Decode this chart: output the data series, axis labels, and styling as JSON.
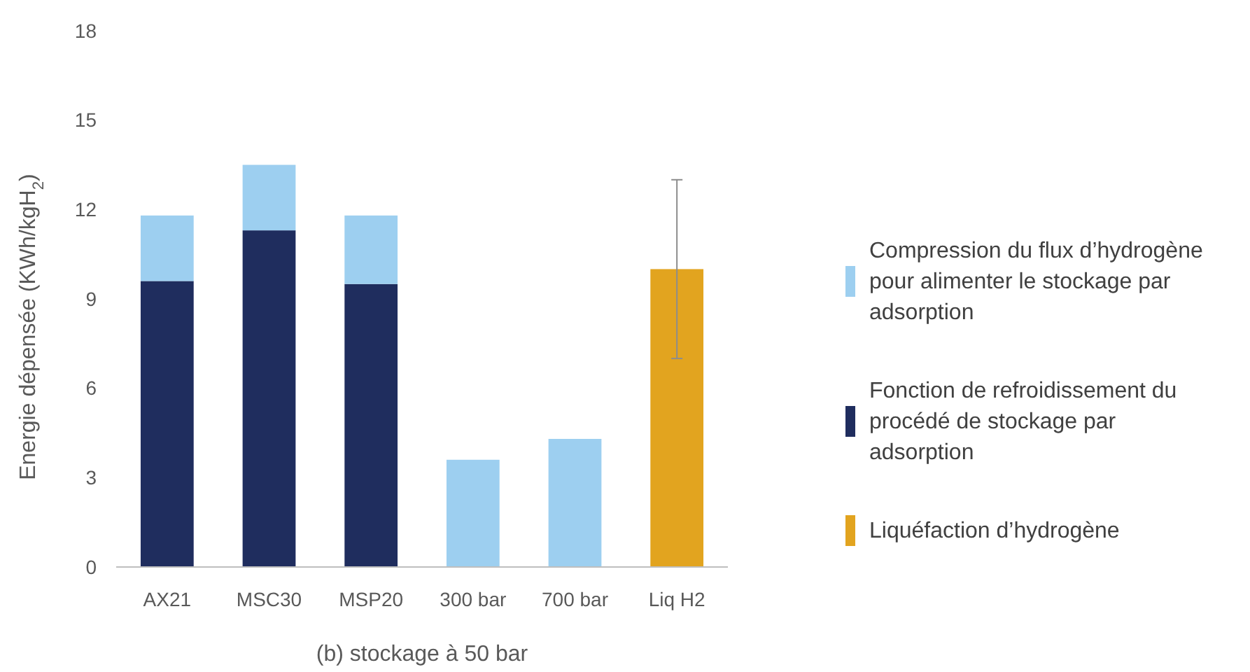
{
  "chart_data": {
    "type": "bar",
    "stacked": true,
    "xlabel": "(b) stockage à 50 bar",
    "ylabel": "Energie dépensée (KWh/kgH$_{2}$)",
    "categories": [
      "AX21",
      "MSC30",
      "MSP20",
      "300 bar",
      "700 bar",
      "Liq H2"
    ],
    "series": [
      {
        "name": "Liquéfaction d’hydrogène",
        "color": "#e2a41f",
        "values": [
          0,
          0,
          0,
          0,
          0,
          10
        ],
        "errors": [
          null,
          null,
          null,
          null,
          null,
          3
        ]
      },
      {
        "name": "Fonction de refroidissement du procédé de stockage par adsorption",
        "color": "#1f2d5e",
        "values": [
          9.6,
          11.3,
          9.5,
          0,
          0,
          0
        ]
      },
      {
        "name": "Compression du flux d’hydrogène pour alimenter le stockage par adsorption",
        "color": "#9dcff0",
        "values": [
          2.2,
          2.2,
          2.3,
          3.6,
          4.3,
          0
        ]
      }
    ],
    "ylim": [
      0,
      18
    ],
    "yticks": [
      0,
      3,
      6,
      9,
      12,
      15,
      18
    ],
    "grid": false,
    "legend": "right"
  }
}
